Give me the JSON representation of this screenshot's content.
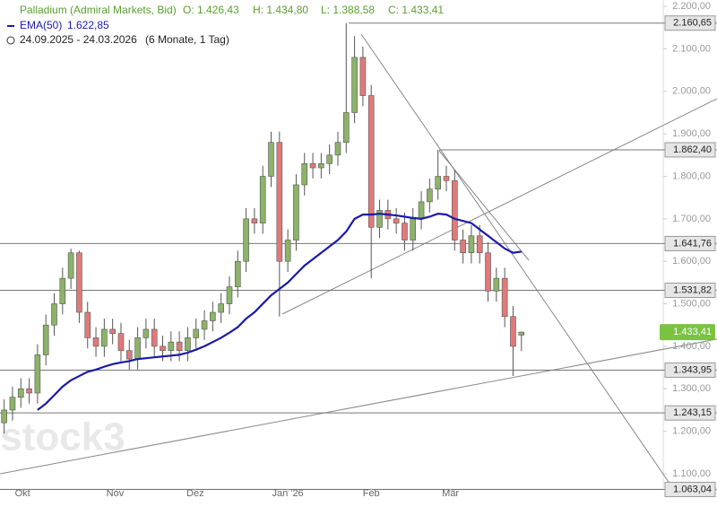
{
  "chart_data": {
    "type": "candlestick",
    "header": {
      "instrument": "Palladium (Admiral Markets, Bid)",
      "open": "O: 1.426,43",
      "high": "H: 1.434,80",
      "low": "L: 1.388,58",
      "close": "C: 1.433,41",
      "ema_name": "EMA(50)",
      "ema_value": "1.622,85",
      "range": "24.09.2025 - 24.03.2026",
      "period": "(6 Monate, 1 Tag)"
    },
    "watermark": "stock3",
    "up_color": "#8cb369",
    "down_color": "#e07a7a",
    "ema_color": "#1a1aaa",
    "open": [
      1220,
      1250,
      1280,
      1300,
      1290,
      1380,
      1450,
      1500,
      1560,
      1620,
      1480,
      1420,
      1400,
      1440,
      1430,
      1390,
      1370,
      1420,
      1440,
      1400,
      1390,
      1410,
      1390,
      1420,
      1440,
      1460,
      1480,
      1500,
      1540,
      1600,
      1700,
      1690,
      1800,
      1880,
      1600,
      1650,
      1780,
      1830,
      1820,
      1830,
      1850,
      1880,
      1950,
      2080,
      1990,
      1680,
      1720,
      1700,
      1690,
      1650,
      1700,
      1740,
      1770,
      1800,
      1790,
      1650,
      1620,
      1660,
      1620,
      1530,
      1560,
      1470,
      1426.43
    ],
    "high": [
      1275,
      1305,
      1325,
      1325,
      1405,
      1475,
      1525,
      1585,
      1630,
      1625,
      1505,
      1445,
      1465,
      1465,
      1455,
      1415,
      1445,
      1465,
      1465,
      1425,
      1435,
      1435,
      1445,
      1465,
      1485,
      1505,
      1525,
      1565,
      1625,
      1725,
      1725,
      1825,
      1905,
      1905,
      1675,
      1805,
      1855,
      1855,
      1855,
      1875,
      1905,
      2160.65,
      2130,
      2105,
      2015,
      1745,
      1745,
      1725,
      1715,
      1725,
      1765,
      1795,
      1862.4,
      1825,
      1815,
      1675,
      1685,
      1685,
      1645,
      1585,
      1585,
      1495,
      1434.8
    ],
    "low": [
      1195,
      1225,
      1255,
      1265,
      1265,
      1355,
      1425,
      1475,
      1535,
      1455,
      1395,
      1375,
      1375,
      1405,
      1365,
      1345,
      1345,
      1395,
      1375,
      1365,
      1365,
      1365,
      1365,
      1395,
      1415,
      1435,
      1455,
      1475,
      1515,
      1575,
      1665,
      1665,
      1775,
      1470,
      1575,
      1625,
      1755,
      1795,
      1795,
      1805,
      1825,
      1855,
      1925,
      1965,
      1560,
      1655,
      1675,
      1665,
      1625,
      1625,
      1675,
      1715,
      1745,
      1765,
      1625,
      1595,
      1595,
      1595,
      1505,
      1505,
      1445,
      1330,
      1388.58
    ],
    "close": [
      1250,
      1280,
      1300,
      1290,
      1380,
      1450,
      1500,
      1560,
      1620,
      1480,
      1420,
      1400,
      1440,
      1430,
      1390,
      1370,
      1420,
      1440,
      1400,
      1390,
      1410,
      1390,
      1420,
      1440,
      1460,
      1480,
      1500,
      1540,
      1600,
      1700,
      1690,
      1800,
      1880,
      1600,
      1650,
      1780,
      1830,
      1820,
      1830,
      1850,
      1880,
      1950,
      2080,
      1990,
      1680,
      1720,
      1700,
      1690,
      1650,
      1700,
      1740,
      1770,
      1800,
      1790,
      1650,
      1620,
      1660,
      1620,
      1530,
      1560,
      1470,
      1400,
      1433.41
    ],
    "ema": [
      null,
      null,
      null,
      null,
      1250,
      1265,
      1285,
      1305,
      1320,
      1330,
      1340,
      1345,
      1352,
      1358,
      1362,
      1365,
      1370,
      1372,
      1374,
      1376,
      1378,
      1380,
      1385,
      1392,
      1400,
      1410,
      1420,
      1432,
      1445,
      1465,
      1480,
      1500,
      1520,
      1535,
      1550,
      1570,
      1590,
      1605,
      1620,
      1635,
      1650,
      1670,
      1700,
      1710,
      1710,
      1712,
      1710,
      1708,
      1705,
      1702,
      1700,
      1705,
      1712,
      1710,
      1700,
      1695,
      1690,
      1675,
      1660,
      1645,
      1630,
      1620,
      1622.85
    ],
    "xlim": [
      -0.5,
      79
    ],
    "xticks": [
      {
        "value": 2.2,
        "label": "Okt"
      },
      {
        "value": 13.3,
        "label": "Nov"
      },
      {
        "value": 22.9,
        "label": "Dez"
      },
      {
        "value": 34,
        "label": "Jan '26"
      },
      {
        "value": 44,
        "label": "Feb"
      },
      {
        "value": 53.5,
        "label": "Mär"
      }
    ],
    "ylim": [
      1064,
      2215
    ],
    "yticks": [
      {
        "value": 1100,
        "label": "1.100,00"
      },
      {
        "value": 1200,
        "label": "1.200,00"
      },
      {
        "value": 1300,
        "label": "1.300,00"
      },
      {
        "value": 1400,
        "label": "1.400,00"
      },
      {
        "value": 1500,
        "label": "1.500,00"
      },
      {
        "value": 1600,
        "label": "1.600,00"
      },
      {
        "value": 1700,
        "label": "1.700,00"
      },
      {
        "value": 1800,
        "label": "1.800,00"
      },
      {
        "value": 1900,
        "label": "1.900,00"
      },
      {
        "value": 2000,
        "label": "2.000,00"
      },
      {
        "value": 2100,
        "label": "2.100,00"
      },
      {
        "value": 2200,
        "label": "2.200,00"
      }
    ],
    "levels": {
      "values": [
        2160.65,
        1862.4,
        1641.76,
        1531.82,
        1343.95,
        1243.15,
        1063.04
      ],
      "value_labels": [
        "2.160,65",
        "1.862,40",
        "1.641,76",
        "1.531,82",
        "1.343,95",
        "1.243,15",
        "1.063,04"
      ],
      "start": [
        389,
        490,
        0,
        0,
        0,
        0,
        0
      ]
    },
    "last_price": {
      "value": 1433.41,
      "label": "1.433,41",
      "color": "#7cc242"
    }
  }
}
